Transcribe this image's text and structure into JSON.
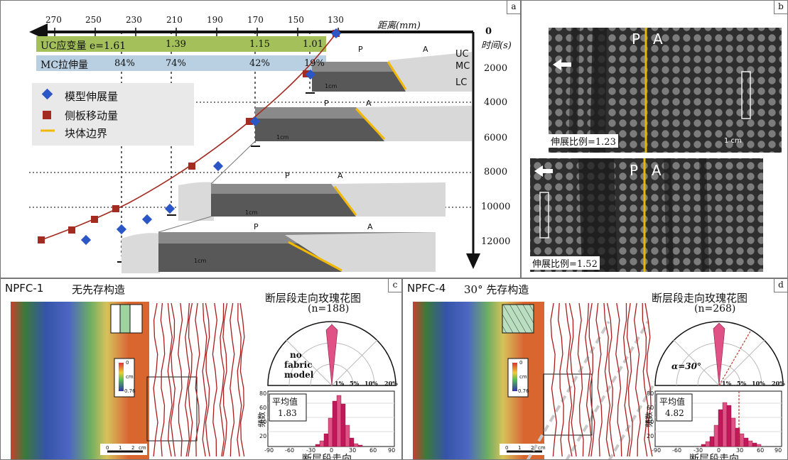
{
  "panel_a": {
    "label": "a",
    "distance_ticks": [
      "270",
      "250",
      "230",
      "210",
      "190",
      "170",
      "150",
      "130"
    ],
    "distance_label": "距离(mm)",
    "time_label": "时间(s)",
    "time_ticks": [
      "0",
      "2000",
      "4000",
      "6000",
      "8000",
      "10000",
      "12000"
    ],
    "uc_label": "UC应变量 e=1.61",
    "uc_values": [
      "1.39",
      "1.15",
      "1.01"
    ],
    "mc_label": "MC拉伸量",
    "mc_values": [
      "84%",
      "74%",
      "42%",
      "19%"
    ],
    "layers": [
      "UC",
      "MC",
      "LC"
    ],
    "section_labels": {
      "p": "P",
      "a": "A"
    },
    "scale_label": "1cm",
    "legend": [
      {
        "label": "模型伸展量",
        "color": "#2b56c6",
        "marker": "diamond"
      },
      {
        "label": "侧板移动量",
        "color": "#a32b20",
        "marker": "square"
      },
      {
        "label": "块体边界",
        "color": "#f2b900",
        "marker": "line"
      }
    ],
    "colors": {
      "uc_bar": "#a3c05a",
      "mc_bar": "#b9d0e2",
      "plate_curve": "#a32b20",
      "model_points": "#2b56c6",
      "boundary": "#f2b900"
    }
  },
  "panel_b": {
    "label": "b",
    "top_caption": "伸展比例=1.23",
    "bottom_caption": "伸展比例=1.52",
    "p": "P",
    "a": "A",
    "scale_label": "1 cm"
  },
  "panel_c": {
    "label": "c",
    "title": "NPFC-1",
    "subtitle": "无先存构造",
    "rose_title": "断层段走向玫瑰花图",
    "rose_n": "(n=188)",
    "rose_note": [
      "no",
      "fabric",
      "model"
    ],
    "rose_pcts": [
      "1%",
      "5%",
      "10%",
      "20%"
    ],
    "hist_ylabel": "频数",
    "hist_yticks": [
      "80",
      "60",
      "40",
      "20"
    ],
    "hist_xticks": [
      "-90",
      "-60",
      "-30",
      "0",
      "30",
      "60",
      "90"
    ],
    "hist_xlabel": "断层段走向",
    "mean_label": "平均值",
    "mean_value": "1.83",
    "colorbar_ticks": [
      "0",
      "cm",
      "0.76"
    ],
    "scalebar": [
      "0",
      "1",
      "2",
      "cm"
    ]
  },
  "panel_d": {
    "label": "d",
    "title": "NPFC-4",
    "subtitle": "30°  先存构造",
    "rose_title": "断层段走向玫瑰花图",
    "rose_n": "(n=268)",
    "alpha": "α=30°",
    "rose_pcts": [
      "1%",
      "5%",
      "10%",
      "20%"
    ],
    "hist_ylabel": "频数",
    "hist_yticks": [
      "80",
      "60",
      "40",
      "20"
    ],
    "hist_xticks": [
      "-90",
      "-60",
      "-30",
      "0",
      "30",
      "60",
      "90"
    ],
    "hist_xlabel": "断层段走向",
    "mean_label": "平均值",
    "mean_value": "4.82",
    "colorbar_ticks": [
      "0",
      "cm",
      "0.76"
    ],
    "scalebar": [
      "0",
      "1",
      "2",
      "cm"
    ]
  }
}
